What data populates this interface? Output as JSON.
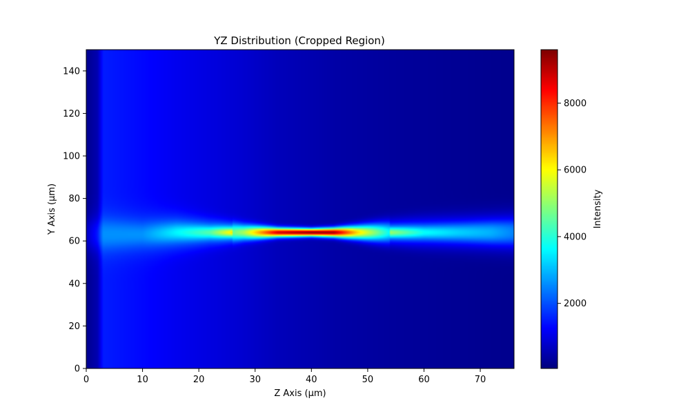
{
  "chart_data": {
    "type": "heatmap",
    "title": "YZ Distribution (Cropped Region)",
    "xlabel": "Z Axis (µm)",
    "ylabel": "Y Axis (µm)",
    "xlim": [
      0,
      76
    ],
    "ylim": [
      0,
      150
    ],
    "xticks": [
      0,
      10,
      20,
      30,
      40,
      50,
      60,
      70
    ],
    "yticks": [
      0,
      20,
      40,
      60,
      80,
      100,
      120,
      140
    ],
    "colormap": "jet",
    "colorbar": {
      "label": "Intensity",
      "range": [
        50,
        9600
      ],
      "ticks": [
        2000,
        4000,
        6000,
        8000
      ]
    },
    "grid": false,
    "description_profiles": {
      "z": [
        0,
        2,
        3,
        10,
        16,
        22,
        28,
        34,
        40,
        44,
        48,
        54,
        60,
        66,
        72,
        76
      ],
      "y_center": [
        63,
        63,
        63,
        63,
        64,
        64,
        64,
        64,
        64,
        64,
        64,
        64,
        64,
        64,
        64,
        64
      ],
      "peak": [
        600,
        1300,
        2400,
        2300,
        2900,
        3400,
        5200,
        8800,
        9500,
        9300,
        6500,
        3600,
        2700,
        2500,
        2400,
        2100
      ],
      "half_width": [
        14,
        14,
        14,
        13,
        11,
        8,
        5,
        3,
        2.5,
        3,
        4.5,
        7,
        9,
        10,
        11,
        12
      ],
      "background": [
        200,
        500,
        1500,
        1300,
        1100,
        950,
        800,
        600,
        500,
        420,
        380,
        320,
        280,
        240,
        200,
        180
      ]
    }
  }
}
